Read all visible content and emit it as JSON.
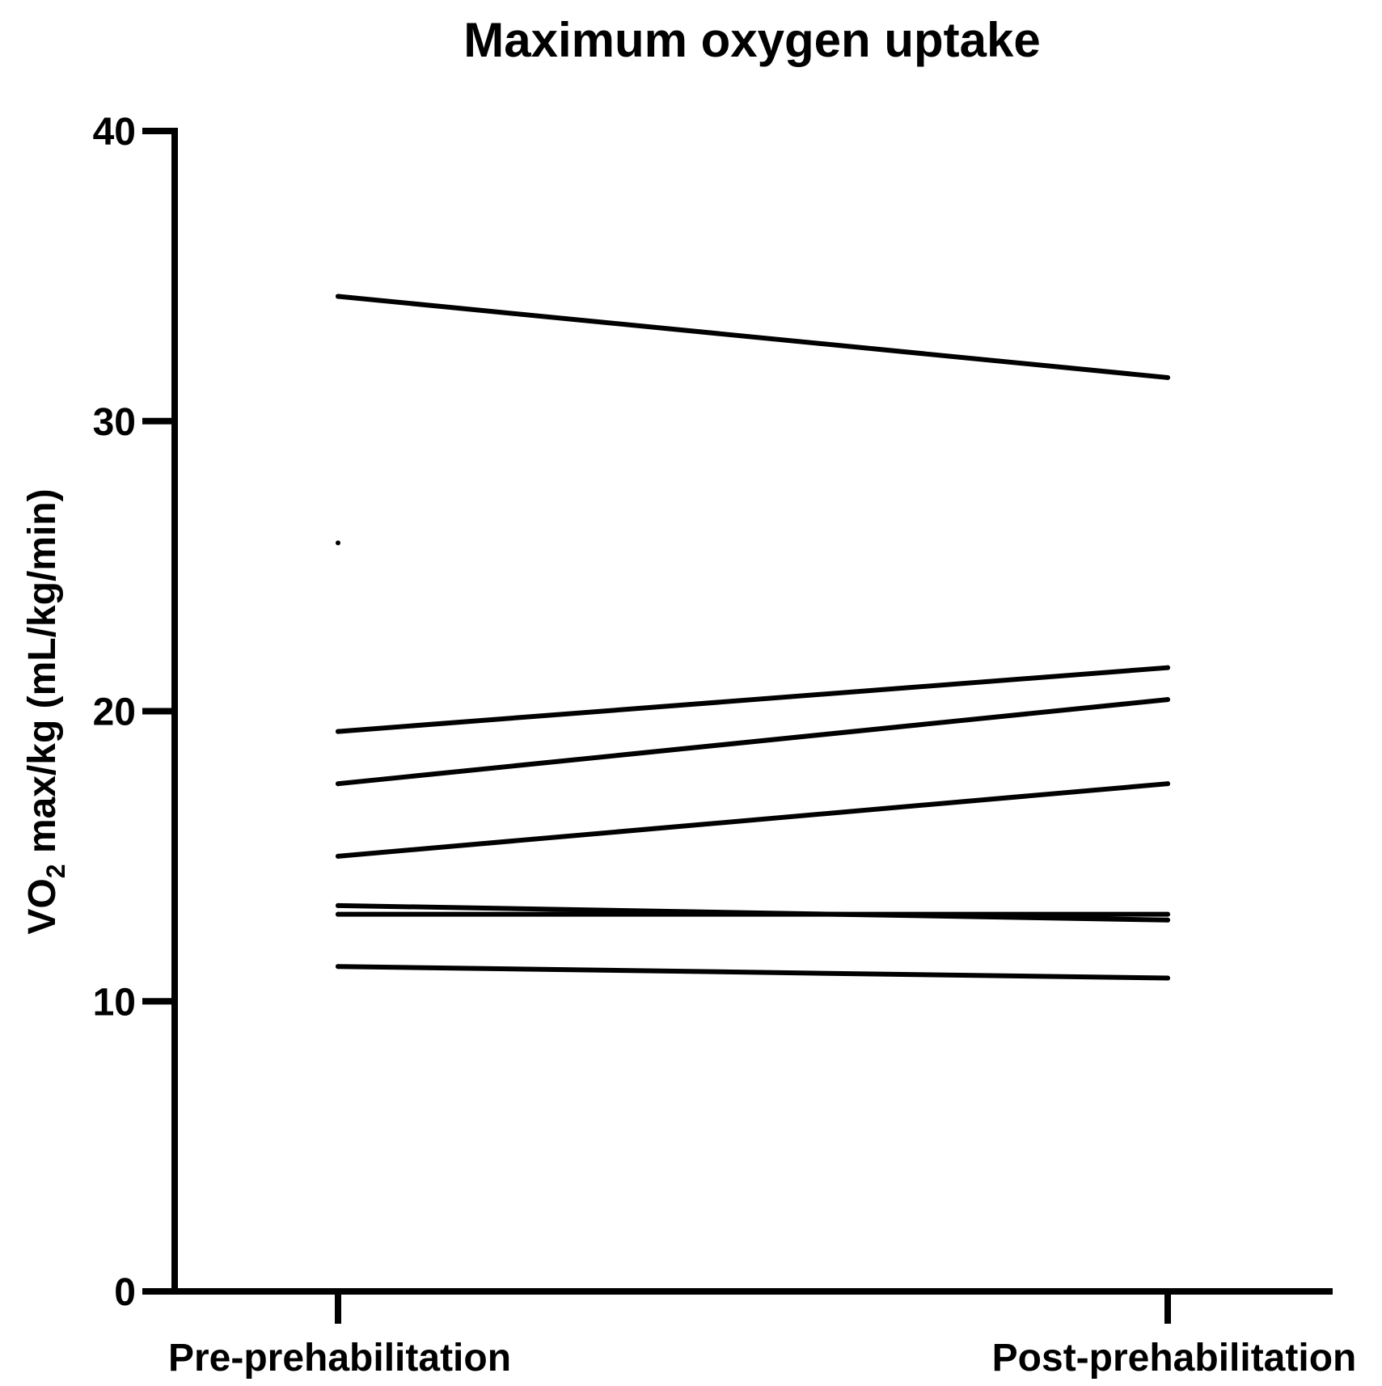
{
  "chart_data": {
    "type": "line",
    "title": "Maximum oxygen uptake",
    "ylabel_main": "VO",
    "ylabel_sub": "2",
    "ylabel_rest": " max/kg (mL/kg/min)",
    "categories": [
      "Pre-prehabilitation",
      "Post-prehabilitation"
    ],
    "ylim": [
      0,
      40
    ],
    "yticks": [
      "0",
      "10",
      "20",
      "30",
      "40"
    ],
    "grid": false,
    "series": [
      {
        "values": [
          34.3,
          31.5
        ]
      },
      {
        "values": [
          25.8,
          null
        ]
      },
      {
        "values": [
          19.3,
          21.5
        ]
      },
      {
        "values": [
          17.5,
          20.4
        ]
      },
      {
        "values": [
          15.0,
          17.5
        ]
      },
      {
        "values": [
          13.3,
          12.8
        ]
      },
      {
        "values": [
          13.0,
          13.0
        ]
      },
      {
        "values": [
          11.2,
          10.8
        ]
      }
    ],
    "line_color": "#000000"
  }
}
